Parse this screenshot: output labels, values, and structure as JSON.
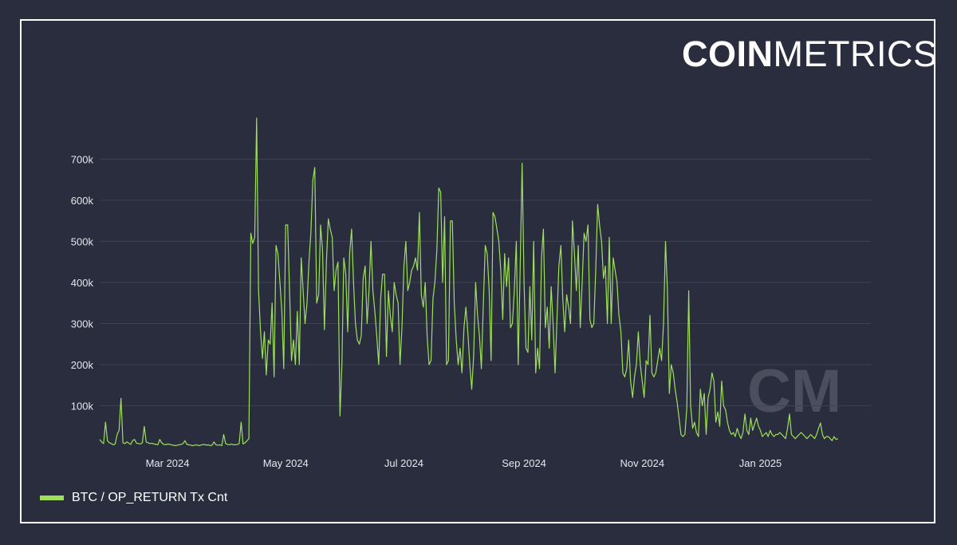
{
  "logo": {
    "bold": "COIN",
    "light": "METRICS"
  },
  "watermark": "CM",
  "colors": {
    "background": "#2a2d3e",
    "series": "#9ee05c",
    "grid": "#3e4154",
    "text": "#e6e6ee"
  },
  "chart_data": {
    "type": "line",
    "title": "",
    "xlabel": "",
    "ylabel": "",
    "ylim": [
      0,
      800000
    ],
    "y_ticks": [
      {
        "value": 100000,
        "label": "100k"
      },
      {
        "value": 200000,
        "label": "200k"
      },
      {
        "value": 300000,
        "label": "300k"
      },
      {
        "value": 400000,
        "label": "400k"
      },
      {
        "value": 500000,
        "label": "500k"
      },
      {
        "value": 600000,
        "label": "600k"
      },
      {
        "value": 700000,
        "label": "700k"
      }
    ],
    "x_ticks": [
      {
        "day": 35,
        "label": "Mar 2024"
      },
      {
        "day": 96,
        "label": "May 2024"
      },
      {
        "day": 157,
        "label": "Jul 2024"
      },
      {
        "day": 219,
        "label": "Sep 2024"
      },
      {
        "day": 280,
        "label": "Nov 2024"
      },
      {
        "day": 341,
        "label": "Jan 2025"
      }
    ],
    "x_domain": [
      0,
      398
    ],
    "grid": true,
    "legend_position": "bottom-left",
    "series": [
      {
        "name": "BTC / OP_RETURN Tx Cnt",
        "start": "2024-01-26",
        "values": [
          18000,
          12000,
          8000,
          60000,
          15000,
          10000,
          8000,
          5000,
          7000,
          30000,
          40000,
          118000,
          10000,
          8000,
          12000,
          9000,
          6000,
          15000,
          18000,
          9000,
          8000,
          7000,
          10000,
          50000,
          12000,
          10000,
          8000,
          9000,
          7000,
          6000,
          5000,
          18000,
          10000,
          6000,
          5000,
          7000,
          6000,
          5000,
          4000,
          3000,
          4000,
          5000,
          6000,
          8000,
          15000,
          6000,
          5000,
          4000,
          3000,
          4000,
          5000,
          3000,
          4000,
          5000,
          6000,
          4000,
          5000,
          3000,
          4000,
          12000,
          5000,
          4000,
          5000,
          3000,
          30000,
          8000,
          6000,
          5000,
          7000,
          5000,
          5000,
          6000,
          8000,
          60000,
          7000,
          10000,
          15000,
          20000,
          520000,
          495000,
          510000,
          800000,
          380000,
          280000,
          215000,
          280000,
          175000,
          260000,
          250000,
          350000,
          170000,
          490000,
          470000,
          400000,
          330000,
          190000,
          540000,
          540000,
          380000,
          210000,
          260000,
          200000,
          330000,
          200000,
          460000,
          380000,
          300000,
          350000,
          450000,
          520000,
          650000,
          680000,
          350000,
          370000,
          540000,
          480000,
          285000,
          450000,
          555000,
          530000,
          510000,
          380000,
          430000,
          450000,
          75000,
          200000,
          460000,
          420000,
          280000,
          470000,
          530000,
          400000,
          300000,
          260000,
          250000,
          270000,
          410000,
          440000,
          300000,
          380000,
          500000,
          380000,
          330000,
          270000,
          200000,
          360000,
          420000,
          420000,
          220000,
          380000,
          320000,
          280000,
          400000,
          370000,
          350000,
          200000,
          290000,
          440000,
          500000,
          380000,
          400000,
          430000,
          440000,
          460000,
          430000,
          570000,
          370000,
          340000,
          400000,
          270000,
          200000,
          210000,
          360000,
          400000,
          480000,
          630000,
          620000,
          400000,
          560000,
          200000,
          210000,
          550000,
          550000,
          350000,
          260000,
          200000,
          240000,
          180000,
          290000,
          340000,
          280000,
          200000,
          140000,
          220000,
          400000,
          320000,
          270000,
          190000,
          350000,
          490000,
          470000,
          380000,
          210000,
          570000,
          560000,
          530000,
          500000,
          430000,
          310000,
          470000,
          390000,
          460000,
          290000,
          300000,
          380000,
          500000,
          200000,
          430000,
          690000,
          400000,
          240000,
          230000,
          390000,
          260000,
          500000,
          180000,
          240000,
          190000,
          460000,
          530000,
          290000,
          340000,
          240000,
          390000,
          300000,
          180000,
          310000,
          440000,
          490000,
          360000,
          280000,
          370000,
          340000,
          300000,
          550000,
          470000,
          380000,
          490000,
          290000,
          400000,
          520000,
          500000,
          540000,
          310000,
          290000,
          300000,
          430000,
          590000,
          540000,
          500000,
          410000,
          440000,
          300000,
          510000,
          300000,
          460000,
          430000,
          400000,
          320000,
          280000,
          180000,
          170000,
          190000,
          260000,
          160000,
          120000,
          170000,
          200000,
          280000,
          200000,
          160000,
          120000,
          210000,
          200000,
          320000,
          180000,
          170000,
          180000,
          210000,
          240000,
          210000,
          300000,
          500000,
          380000,
          130000,
          200000,
          180000,
          140000,
          110000,
          70000,
          30000,
          25000,
          30000,
          95000,
          380000,
          100000,
          45000,
          60000,
          35000,
          25000,
          140000,
          100000,
          130000,
          30000,
          120000,
          140000,
          180000,
          160000,
          60000,
          85000,
          50000,
          160000,
          100000,
          90000,
          60000,
          40000,
          30000,
          35000,
          25000,
          45000,
          30000,
          20000,
          35000,
          80000,
          40000,
          30000,
          70000,
          40000,
          55000,
          70000,
          50000,
          40000,
          25000,
          30000,
          35000,
          25000,
          40000,
          30000,
          25000,
          30000,
          30000,
          35000,
          30000,
          25000,
          20000,
          45000,
          80000,
          30000,
          25000,
          20000,
          25000,
          30000,
          35000,
          30000,
          25000,
          20000,
          25000,
          30000,
          25000,
          20000,
          30000,
          45000,
          58000,
          30000,
          20000,
          25000,
          25000,
          20000,
          15000,
          25000,
          18000,
          20000
        ]
      }
    ]
  }
}
